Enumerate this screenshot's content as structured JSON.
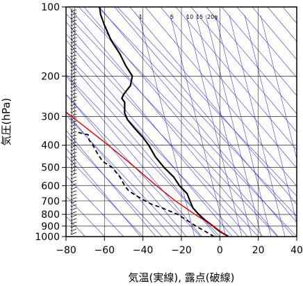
{
  "chart_data": {
    "type": "line",
    "subtype": "skew-t log-p aerological diagram",
    "xlabel": "気温(実線), 露点(破線)",
    "ylabel": "気圧(hPa)",
    "xlim": [
      -80,
      40
    ],
    "ylim": [
      1000,
      100
    ],
    "y_scale": "log",
    "x_ticks": [
      -80,
      -60,
      -40,
      -20,
      0,
      20,
      40
    ],
    "y_ticks": [
      100,
      200,
      300,
      400,
      500,
      600,
      700,
      800,
      900,
      1000
    ],
    "mixing_ratio_labels": [
      "1",
      "5",
      "10",
      "15",
      "20g"
    ],
    "grid": true,
    "colors": {
      "temperature": "#000000",
      "dewpoint": "#000000",
      "parcel": "#e00000",
      "background_lines": "#3a3ae6",
      "isobars": "#000000"
    },
    "series": [
      {
        "style": "solid",
        "points": [
          [
            1000,
            4.5
          ],
          [
            950,
            0.0
          ],
          [
            900,
            -3.5
          ],
          [
            850,
            -7.5
          ],
          [
            800,
            -11.0
          ],
          [
            750,
            -14.0
          ],
          [
            700,
            -15.5
          ],
          [
            650,
            -17.0
          ],
          [
            600,
            -21.0
          ],
          [
            550,
            -24.0
          ],
          [
            500,
            -29.0
          ],
          [
            450,
            -33.5
          ],
          [
            400,
            -37.0
          ],
          [
            370,
            -40.0
          ],
          [
            340,
            -44.0
          ],
          [
            310,
            -48.0
          ],
          [
            290,
            -49.5
          ],
          [
            260,
            -49.5
          ],
          [
            250,
            -51.0
          ],
          [
            240,
            -50.0
          ],
          [
            220,
            -46.5
          ],
          [
            200,
            -45.5
          ],
          [
            180,
            -49.0
          ],
          [
            160,
            -52.0
          ],
          [
            140,
            -56.5
          ],
          [
            120,
            -60.0
          ],
          [
            108,
            -62.0
          ],
          [
            100,
            -62.5
          ]
        ]
      },
      {
        "style": "dashed",
        "points": [
          [
            1000,
            -3.0
          ],
          [
            950,
            -7.5
          ],
          [
            900,
            -12.5
          ],
          [
            850,
            -17.0
          ],
          [
            800,
            -22.0
          ],
          [
            750,
            -30.0
          ],
          [
            720,
            -36.0
          ],
          [
            690,
            -40.0
          ],
          [
            660,
            -44.0
          ],
          [
            630,
            -47.5
          ],
          [
            600,
            -49.5
          ],
          [
            550,
            -52.0
          ],
          [
            500,
            -56.0
          ],
          [
            470,
            -61.0
          ],
          [
            430,
            -64.0
          ],
          [
            400,
            -66.0
          ],
          [
            380,
            -68.0
          ],
          [
            360,
            -68.5
          ],
          [
            350,
            -75.0
          ]
        ]
      },
      {
        "style": "solid",
        "points": [
          [
            1000,
            4.0
          ],
          [
            950,
            0.5
          ],
          [
            900,
            -3.5
          ],
          [
            850,
            -8.0
          ],
          [
            800,
            -13.0
          ],
          [
            700,
            -23.0
          ],
          [
            600,
            -33.0
          ],
          [
            500,
            -44.0
          ],
          [
            400,
            -58.0
          ],
          [
            300,
            -77.0
          ],
          [
            270,
            -84.0
          ],
          [
            250,
            -90.0
          ]
        ]
      }
    ]
  }
}
